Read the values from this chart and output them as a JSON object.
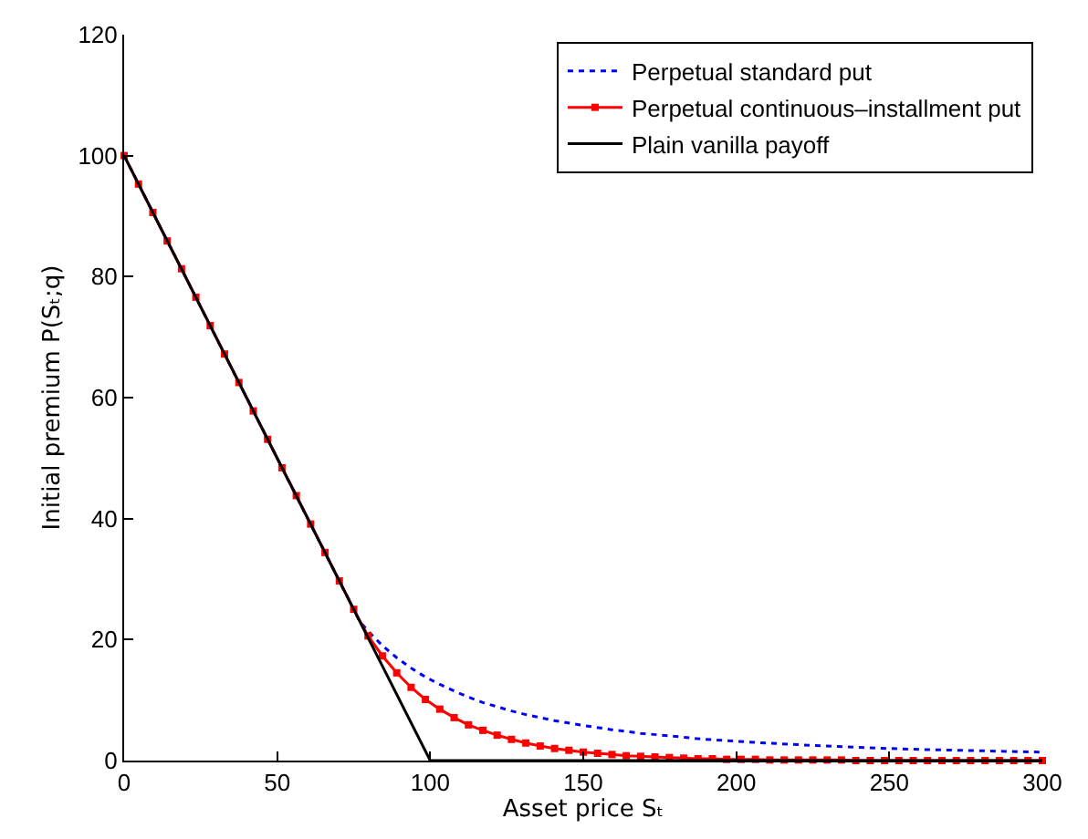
{
  "chart_data": {
    "type": "line",
    "xlabel": "Asset price Sₜ",
    "ylabel": "Initial premium P(Sₜ;q)",
    "xlim": [
      0,
      300
    ],
    "ylim": [
      0,
      120
    ],
    "xticks": [
      0,
      50,
      100,
      150,
      200,
      250,
      300
    ],
    "yticks": [
      0,
      20,
      40,
      60,
      80,
      100,
      120
    ],
    "legend": "top right",
    "series": [
      {
        "name": "Perpetual standard put",
        "color": "#0000ff",
        "line_style": "dotted",
        "marker": "none",
        "x": [
          0,
          77,
          79.69,
          84.38,
          89.06,
          93.75,
          98.44,
          103.13,
          107.81,
          112.5,
          117.19,
          121.88,
          126.56,
          131.25,
          135.94,
          140.63,
          150,
          159.38,
          168.75,
          178.13,
          187.5,
          206.25,
          225,
          243.75,
          262.5,
          281.25,
          300
        ],
        "values": [
          100,
          23,
          21.4,
          19.0,
          17.0,
          15.3,
          13.8,
          12.6,
          11.5,
          10.5,
          9.6,
          8.9,
          8.2,
          7.6,
          7.1,
          6.6,
          5.8,
          5.1,
          4.5,
          4.1,
          3.6,
          3.0,
          2.5,
          2.1,
          1.8,
          1.6,
          1.4
        ]
      },
      {
        "name": "Perpetual continuous–installment put",
        "color": "#ff0000",
        "line_style": "solid",
        "marker": "square",
        "x": [
          0,
          4.69,
          9.38,
          14.06,
          18.75,
          23.44,
          28.13,
          32.81,
          37.5,
          42.19,
          46.88,
          51.56,
          56.25,
          60.94,
          65.63,
          70.31,
          75,
          79.69,
          84.38,
          89.06,
          93.75,
          98.44,
          103.13,
          107.81,
          112.5,
          117.19,
          121.88,
          126.56,
          131.25,
          135.94,
          140.63,
          145.31,
          150,
          154.69,
          159.38,
          164.06,
          168.75,
          173.44,
          178.13,
          182.81,
          187.5,
          192.19,
          196.88,
          201.56,
          206.25,
          210.94,
          215.63,
          220.31,
          225,
          229.69,
          234.38,
          239.06,
          243.75,
          248.44,
          253.13,
          257.81,
          262.5,
          267.19,
          271.88,
          276.56,
          281.25,
          285.94,
          290.63,
          295.31,
          300
        ],
        "values": [
          100,
          95.3,
          90.6,
          85.9,
          81.3,
          76.6,
          71.9,
          67.2,
          62.5,
          57.8,
          53.1,
          48.4,
          43.8,
          39.1,
          34.4,
          29.7,
          25.0,
          20.6,
          17.3,
          14.5,
          12.1,
          10.1,
          8.5,
          7.1,
          5.9,
          5.0,
          4.2,
          3.5,
          2.9,
          2.4,
          2.0,
          1.7,
          1.4,
          1.2,
          1.0,
          0.8,
          0.7,
          0.6,
          0.5,
          0.4,
          0.3,
          0.3,
          0.2,
          0.2,
          0.2,
          0.1,
          0.1,
          0.1,
          0.1,
          0.1,
          0.1,
          0,
          0,
          0,
          0,
          0,
          0,
          0,
          0,
          0,
          0,
          0,
          0,
          0,
          0
        ]
      },
      {
        "name": "Plain vanilla payoff",
        "color": "#000000",
        "line_style": "solid",
        "marker": "none",
        "x": [
          0,
          100,
          300
        ],
        "values": [
          100,
          0,
          0
        ]
      }
    ]
  }
}
